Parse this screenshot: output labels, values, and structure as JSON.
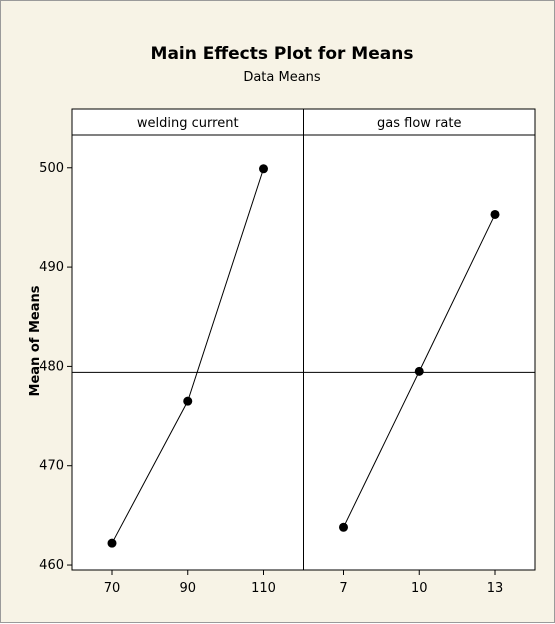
{
  "chart_data": {
    "type": "line",
    "title": "Main Effects Plot for Means",
    "subtitle": "Data Means",
    "ylabel": "Mean of Means",
    "ylim": [
      459.5,
      503.3
    ],
    "yticks": [
      460,
      470,
      480,
      490,
      500
    ],
    "reference_mean": 479.4,
    "panels": [
      {
        "name": "welding current",
        "categories": [
          "70",
          "90",
          "110"
        ],
        "values": [
          462.2,
          476.5,
          499.9
        ]
      },
      {
        "name": "gas flow rate",
        "categories": [
          "7",
          "10",
          "13"
        ],
        "values": [
          463.8,
          479.5,
          495.3
        ]
      }
    ],
    "grid": false,
    "legend": "none"
  },
  "colors": {
    "background": "#f7f3e6",
    "plot_area": "#ffffff",
    "line": "#000000",
    "marker": "#000000"
  }
}
